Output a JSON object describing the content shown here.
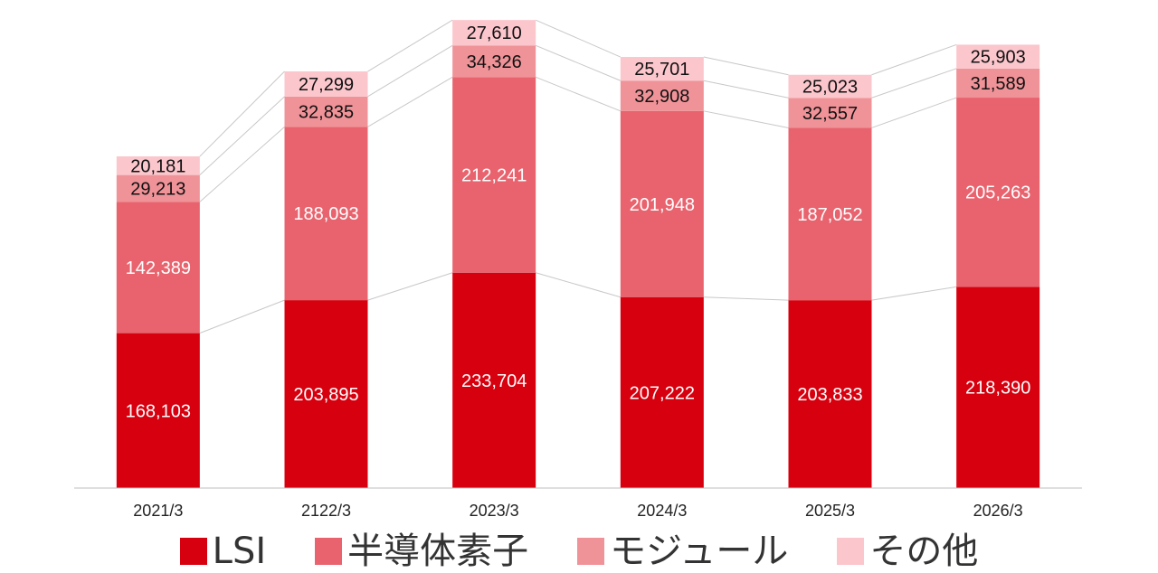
{
  "chart_data": {
    "type": "bar",
    "stacked": true,
    "categories": [
      "2021/3",
      "2122/3",
      "2023/3",
      "2024/3",
      "2025/3",
      "2026/3"
    ],
    "series": [
      {
        "name": "LSI",
        "color": "#d7000f",
        "label_color": "#ffffff",
        "values": [
          168103,
          203895,
          233704,
          207222,
          203833,
          218390
        ]
      },
      {
        "name": "半導体素子",
        "color": "#e8636e",
        "label_color": "#ffffff",
        "values": [
          142389,
          188093,
          212241,
          201948,
          187052,
          205263
        ]
      },
      {
        "name": "モジュール",
        "color": "#ef9398",
        "label_color": "#111111",
        "values": [
          29213,
          32835,
          34326,
          32908,
          32557,
          31589
        ]
      },
      {
        "name": "その他",
        "color": "#fbc6cc",
        "label_color": "#111111",
        "values": [
          20181,
          27299,
          27610,
          25701,
          25023,
          25903
        ]
      }
    ],
    "ylim": [
      0,
      510000
    ],
    "grid": false,
    "connector_lines": true,
    "legend_position": "bottom"
  }
}
